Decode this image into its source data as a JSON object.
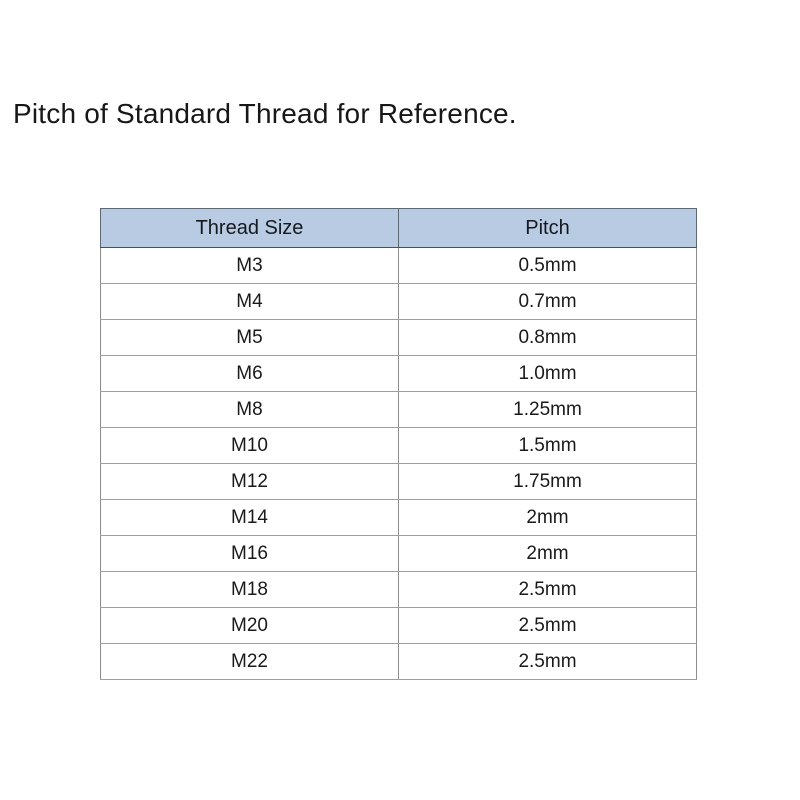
{
  "title": "Pitch of Standard Thread for Reference.",
  "colors": {
    "background": "#ffffff",
    "header_bg": "#b8cbe3",
    "text": "#1a1a1a",
    "border_outer": "#666d77",
    "border_inner": "#9e9e9e"
  },
  "table": {
    "headers": [
      "Thread Size",
      "Pitch"
    ],
    "rows": [
      [
        "M3",
        "0.5mm"
      ],
      [
        "M4",
        "0.7mm"
      ],
      [
        "M5",
        "0.8mm"
      ],
      [
        "M6",
        "1.0mm"
      ],
      [
        "M8",
        "1.25mm"
      ],
      [
        "M10",
        "1.5mm"
      ],
      [
        "M12",
        "1.75mm"
      ],
      [
        "M14",
        "2mm"
      ],
      [
        "M16",
        "2mm"
      ],
      [
        "M18",
        "2.5mm"
      ],
      [
        "M20",
        "2.5mm"
      ],
      [
        "M22",
        "2.5mm"
      ]
    ]
  },
  "chart_data": {
    "type": "table",
    "title": "Pitch of Standard Thread for Reference.",
    "columns": [
      "Thread Size",
      "Pitch"
    ],
    "rows": [
      [
        "M3",
        "0.5mm"
      ],
      [
        "M4",
        "0.7mm"
      ],
      [
        "M5",
        "0.8mm"
      ],
      [
        "M6",
        "1.0mm"
      ],
      [
        "M8",
        "1.25mm"
      ],
      [
        "M10",
        "1.5mm"
      ],
      [
        "M12",
        "1.75mm"
      ],
      [
        "M14",
        "2mm"
      ],
      [
        "M16",
        "2mm"
      ],
      [
        "M18",
        "2.5mm"
      ],
      [
        "M20",
        "2.5mm"
      ],
      [
        "M22",
        "2.5mm"
      ]
    ]
  }
}
